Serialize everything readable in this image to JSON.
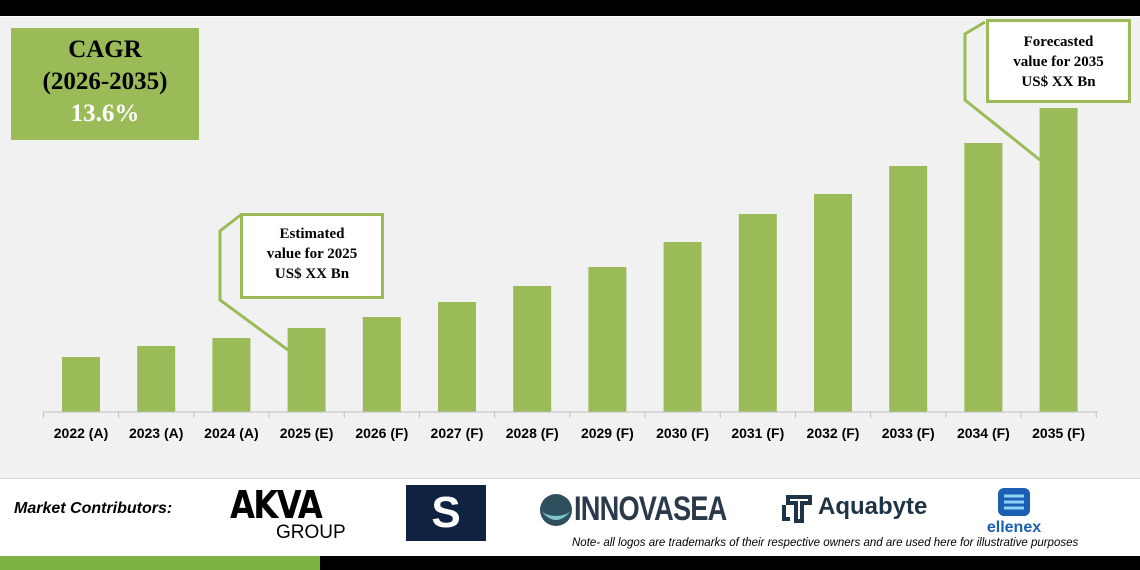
{
  "cagr": {
    "label": "CAGR",
    "period": "(2026-2035)",
    "value": "13.6%"
  },
  "callouts": {
    "estimated": {
      "line1": "Estimated",
      "line2": "value for 2025",
      "line3": "US$ XX Bn"
    },
    "forecasted": {
      "line1": "Forecasted",
      "line2": "value for 2035",
      "line3": "US$ XX Bn"
    }
  },
  "chart_data": {
    "type": "bar",
    "categories": [
      "2022 (A)",
      "2023 (A)",
      "2024 (A)",
      "2025 (E)",
      "2026 (F)",
      "2027 (F)",
      "2028 (F)",
      "2029 (F)",
      "2030 (F)",
      "2031 (F)",
      "2032 (F)",
      "2033 (F)",
      "2034 (F)",
      "2035 (F)"
    ],
    "values": [
      55,
      66,
      74,
      84,
      95,
      110,
      126,
      145,
      170,
      198,
      218,
      246,
      269,
      304
    ],
    "title": "",
    "xlabel": "",
    "ylabel": "",
    "grid": false,
    "color": "#9bbb59"
  },
  "footer": {
    "label": "Market Contributors:",
    "logos": [
      "AKVA",
      "GROUP",
      "S",
      "INNOVASEA",
      "Aquabyte",
      "ellenex"
    ],
    "note": "Note- all logos are trademarks of their respective owners and are used here for illustrative purposes"
  }
}
